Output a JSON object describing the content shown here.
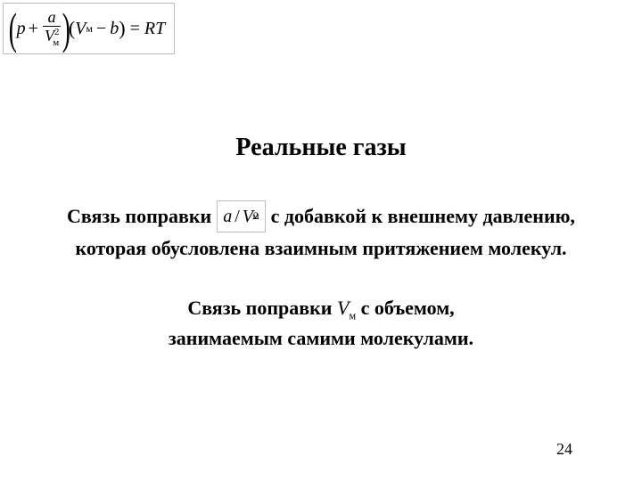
{
  "equation": {
    "p": "p",
    "plus": "+",
    "frac_num": "a",
    "frac_den_V": "V",
    "frac_den_sub": "м",
    "frac_den_sup": "2",
    "V2": "V",
    "V2_sub": "м",
    "minus": "−",
    "b": "b",
    "eq": "=",
    "R": "R",
    "T": "T"
  },
  "title": "Реальные газы",
  "para1": {
    "before": "Связь поправки",
    "formula_a": "a",
    "formula_slash": "/",
    "formula_V": "V",
    "formula_sub": "м",
    "formula_sup": "2",
    "after": "с добавкой к внешнему давлению,",
    "line2": "которая обусловлена взаимным притяжением молекул."
  },
  "para2": {
    "line1_before": "Связь поправки ",
    "vm_V": "V",
    "vm_sub": "м",
    "line1_after": " с объемом,",
    "line2": "занимаемым самими молекулами."
  },
  "pageNumber": "24"
}
